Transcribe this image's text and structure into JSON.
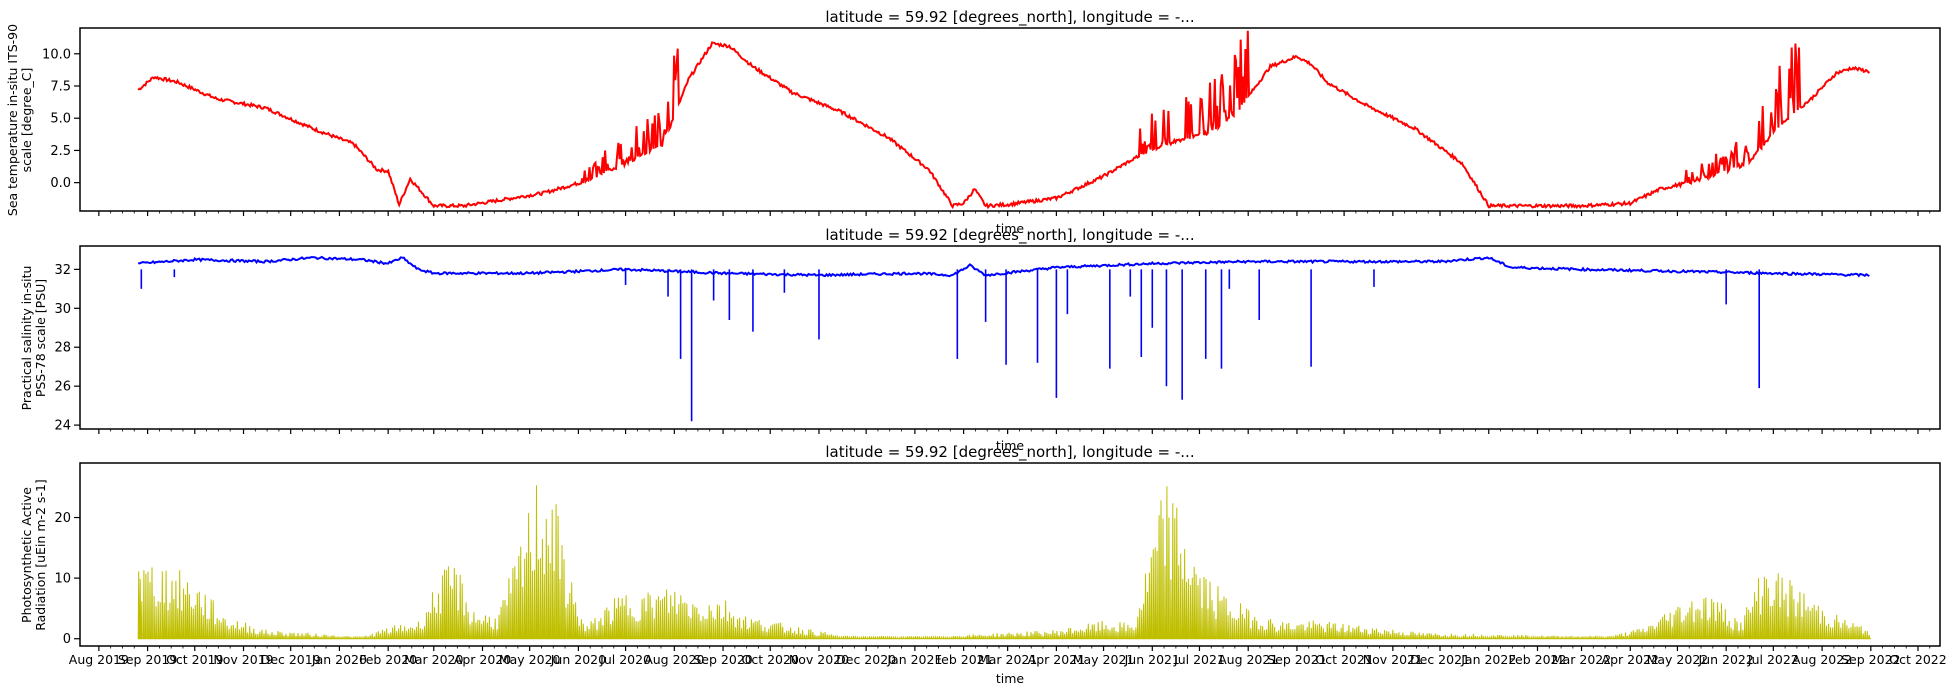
{
  "chart_data": [
    {
      "type": "line",
      "title": "latitude = 59.92 [degrees_north], longitude = -...",
      "xlabel": "time",
      "ylabel": [
        "Sea temperature in-situ ITS-90",
        "scale [degree_C]"
      ],
      "ylim": [
        -2.2,
        12.0
      ],
      "yticks": [
        0.0,
        2.5,
        5.0,
        7.5,
        10.0
      ],
      "ytick_labels": [
        "0.0",
        "2.5",
        "5.0",
        "7.5",
        "10.0"
      ],
      "color": "#ff0000",
      "show_xtick_labels": false,
      "series": [
        {
          "x": [
            "2019-08-26",
            "2019-09-05",
            "2019-09-20",
            "2019-10-15",
            "2019-11-15",
            "2019-12-15",
            "2020-01-10",
            "2020-01-25",
            "2020-02-01",
            "2020-02-08",
            "2020-02-15",
            "2020-03-01",
            "2020-03-20",
            "2020-04-10",
            "2020-05-10",
            "2020-06-05",
            "2020-07-01",
            "2020-07-25",
            "2020-08-10",
            "2020-08-25",
            "2020-09-05",
            "2020-09-20",
            "2020-10-15",
            "2020-11-15",
            "2020-12-15",
            "2021-01-10",
            "2021-01-25",
            "2021-02-01",
            "2021-02-08",
            "2021-02-15",
            "2021-03-01",
            "2021-04-01",
            "2021-05-01",
            "2021-05-25",
            "2021-06-15",
            "2021-07-10",
            "2021-07-25",
            "2021-08-15",
            "2021-09-01",
            "2021-09-10",
            "2021-09-20",
            "2021-10-15",
            "2021-11-15",
            "2021-12-15",
            "2022-01-01",
            "2022-02-01",
            "2022-03-01",
            "2022-04-01",
            "2022-04-20",
            "2022-05-15",
            "2022-06-15",
            "2022-07-05",
            "2022-07-25",
            "2022-08-10",
            "2022-08-20",
            "2022-09-01"
          ],
          "y": [
            7.2,
            8.2,
            7.8,
            6.5,
            5.8,
            4.2,
            3.0,
            1.0,
            0.9,
            -1.7,
            0.3,
            -1.8,
            -1.8,
            -1.4,
            -0.8,
            0.1,
            1.5,
            3.0,
            8.0,
            10.8,
            10.6,
            9.0,
            7.0,
            5.5,
            3.5,
            1.0,
            -1.8,
            -1.6,
            -0.5,
            -1.8,
            -1.7,
            -1.2,
            0.5,
            2.2,
            3.2,
            4.0,
            5.5,
            9.0,
            9.8,
            9.2,
            7.8,
            6.0,
            4.2,
            1.5,
            -1.8,
            -1.8,
            -1.8,
            -1.6,
            -0.5,
            0.2,
            1.5,
            4.5,
            6.5,
            8.5,
            8.9,
            8.6
          ]
        }
      ]
    },
    {
      "type": "line",
      "title": "latitude = 59.92 [degrees_north], longitude = -...",
      "xlabel": "time",
      "ylabel": [
        "Practical salinity in-situ",
        "PSS-78 scale [PSU]"
      ],
      "ylim": [
        23.8,
        33.2
      ],
      "yticks": [
        24,
        26,
        28,
        30,
        32
      ],
      "ytick_labels": [
        "24",
        "26",
        "28",
        "30",
        "32"
      ],
      "color": "#0000ff",
      "show_xtick_labels": false,
      "series": [
        {
          "x": [
            "2019-08-26",
            "2019-10-01",
            "2019-11-15",
            "2019-12-15",
            "2020-01-15",
            "2020-02-01",
            "2020-02-10",
            "2020-02-20",
            "2020-03-01",
            "2020-05-01",
            "2020-07-01",
            "2020-09-01",
            "2020-11-01",
            "2021-01-01",
            "2021-01-25",
            "2021-02-05",
            "2021-02-15",
            "2021-04-01",
            "2021-06-01",
            "2021-08-01",
            "2021-10-01",
            "2021-12-01",
            "2022-01-01",
            "2022-01-15",
            "2022-03-01",
            "2022-05-01",
            "2022-07-01",
            "2022-09-01"
          ],
          "y": [
            32.3,
            32.5,
            32.4,
            32.6,
            32.5,
            32.3,
            32.6,
            32.0,
            31.8,
            31.8,
            32.0,
            31.8,
            31.7,
            31.8,
            31.7,
            32.2,
            31.7,
            32.1,
            32.3,
            32.4,
            32.4,
            32.4,
            32.6,
            32.1,
            32.0,
            31.9,
            31.8,
            31.7
          ]
        }
      ],
      "dips": [
        {
          "x": "2019-08-28",
          "y": 31.0
        },
        {
          "x": "2019-09-18",
          "y": 31.6
        },
        {
          "x": "2020-07-01",
          "y": 31.2
        },
        {
          "x": "2020-07-28",
          "y": 30.6
        },
        {
          "x": "2020-08-05",
          "y": 27.4
        },
        {
          "x": "2020-08-12",
          "y": 24.2
        },
        {
          "x": "2020-08-26",
          "y": 30.4
        },
        {
          "x": "2020-09-05",
          "y": 29.4
        },
        {
          "x": "2020-09-20",
          "y": 28.8
        },
        {
          "x": "2020-10-10",
          "y": 30.8
        },
        {
          "x": "2020-11-01",
          "y": 28.4
        },
        {
          "x": "2021-01-28",
          "y": 27.4
        },
        {
          "x": "2021-02-15",
          "y": 29.3
        },
        {
          "x": "2021-02-28",
          "y": 27.1
        },
        {
          "x": "2021-03-20",
          "y": 27.2
        },
        {
          "x": "2021-04-01",
          "y": 25.4
        },
        {
          "x": "2021-04-08",
          "y": 29.7
        },
        {
          "x": "2021-05-05",
          "y": 26.9
        },
        {
          "x": "2021-05-18",
          "y": 30.6
        },
        {
          "x": "2021-05-25",
          "y": 27.5
        },
        {
          "x": "2021-06-01",
          "y": 29.0
        },
        {
          "x": "2021-06-10",
          "y": 26.0
        },
        {
          "x": "2021-06-20",
          "y": 25.3
        },
        {
          "x": "2021-07-05",
          "y": 27.4
        },
        {
          "x": "2021-07-15",
          "y": 26.9
        },
        {
          "x": "2021-07-20",
          "y": 31.0
        },
        {
          "x": "2021-08-08",
          "y": 29.4
        },
        {
          "x": "2021-09-10",
          "y": 27.0
        },
        {
          "x": "2021-10-20",
          "y": 31.1
        },
        {
          "x": "2022-06-01",
          "y": 30.2
        },
        {
          "x": "2022-06-22",
          "y": 25.9
        }
      ]
    },
    {
      "type": "area",
      "title": "latitude = 59.92 [degrees_north], longitude = -...",
      "xlabel": "time",
      "ylabel": [
        "Photosynthetic Active",
        "Radiation [uEin m-2 s-1]"
      ],
      "ylim": [
        -1.2,
        29.0
      ],
      "yticks": [
        0,
        10,
        20
      ],
      "ytick_labels": [
        "0",
        "10",
        "20"
      ],
      "color": "#bfbf00",
      "show_xtick_labels": true,
      "xtick_labels": [
        "Aug 2019",
        "Sep 2019",
        "Oct 2019",
        "Nov 2019",
        "Dec 2019",
        "Jan 2020",
        "Feb 2020",
        "Mar 2020",
        "Apr 2020",
        "May 2020",
        "Jun 2020",
        "Jul 2020",
        "Aug 2020",
        "Sep 2020",
        "Oct 2020",
        "Nov 2020",
        "Dec 2020",
        "Jan 2021",
        "Feb 2021",
        "Mar 2021",
        "Apr 2021",
        "May 2021",
        "Jun 2021",
        "Jul 2021",
        "Aug 2021",
        "Sep 2021",
        "Oct 2021",
        "Nov 2021",
        "Dec 2021",
        "Jan 2022",
        "Feb 2022",
        "Mar 2022",
        "Apr 2022",
        "May 2022",
        "Jun 2022",
        "Jul 2022",
        "Aug 2022",
        "Sep 2022",
        "Oct 2022"
      ],
      "series": [
        {
          "x": [
            "2019-08-26",
            "2019-08-28",
            "2019-09-10",
            "2019-10-01",
            "2019-10-20",
            "2019-11-15",
            "2020-01-15",
            "2020-02-01",
            "2020-02-20",
            "2020-03-05",
            "2020-03-15",
            "2020-03-25",
            "2020-04-10",
            "2020-04-25",
            "2020-05-05",
            "2020-05-15",
            "2020-05-25",
            "2020-06-05",
            "2020-06-20",
            "2020-07-01",
            "2020-07-15",
            "2020-08-01",
            "2020-08-15",
            "2020-09-01",
            "2020-09-15",
            "2020-10-01",
            "2020-10-20",
            "2020-11-15",
            "2021-01-15",
            "2021-04-01",
            "2021-05-01",
            "2021-05-20",
            "2021-06-05",
            "2021-06-10",
            "2021-06-20",
            "2021-07-01",
            "2021-07-15",
            "2021-08-01",
            "2021-08-20",
            "2021-09-15",
            "2021-10-20",
            "2021-11-20",
            "2022-02-15",
            "2022-03-20",
            "2022-04-10",
            "2022-04-20",
            "2022-05-01",
            "2022-05-15",
            "2022-05-25",
            "2022-06-10",
            "2022-06-25",
            "2022-07-15",
            "2022-08-10",
            "2022-09-01"
          ],
          "y": [
            19,
            13,
            13,
            10,
            4,
            1.5,
            0.3,
            2,
            3,
            11,
            13,
            5,
            4,
            16,
            27,
            26,
            12,
            2,
            6,
            8,
            8,
            9,
            7,
            7,
            4,
            3,
            2,
            0.5,
            0.4,
            1.5,
            3,
            2.5,
            22,
            27,
            20,
            12,
            8,
            5,
            3,
            3,
            2,
            1,
            0.5,
            0.5,
            2,
            4,
            6,
            8,
            7,
            3,
            13,
            9,
            4,
            1.5
          ]
        }
      ]
    }
  ]
}
